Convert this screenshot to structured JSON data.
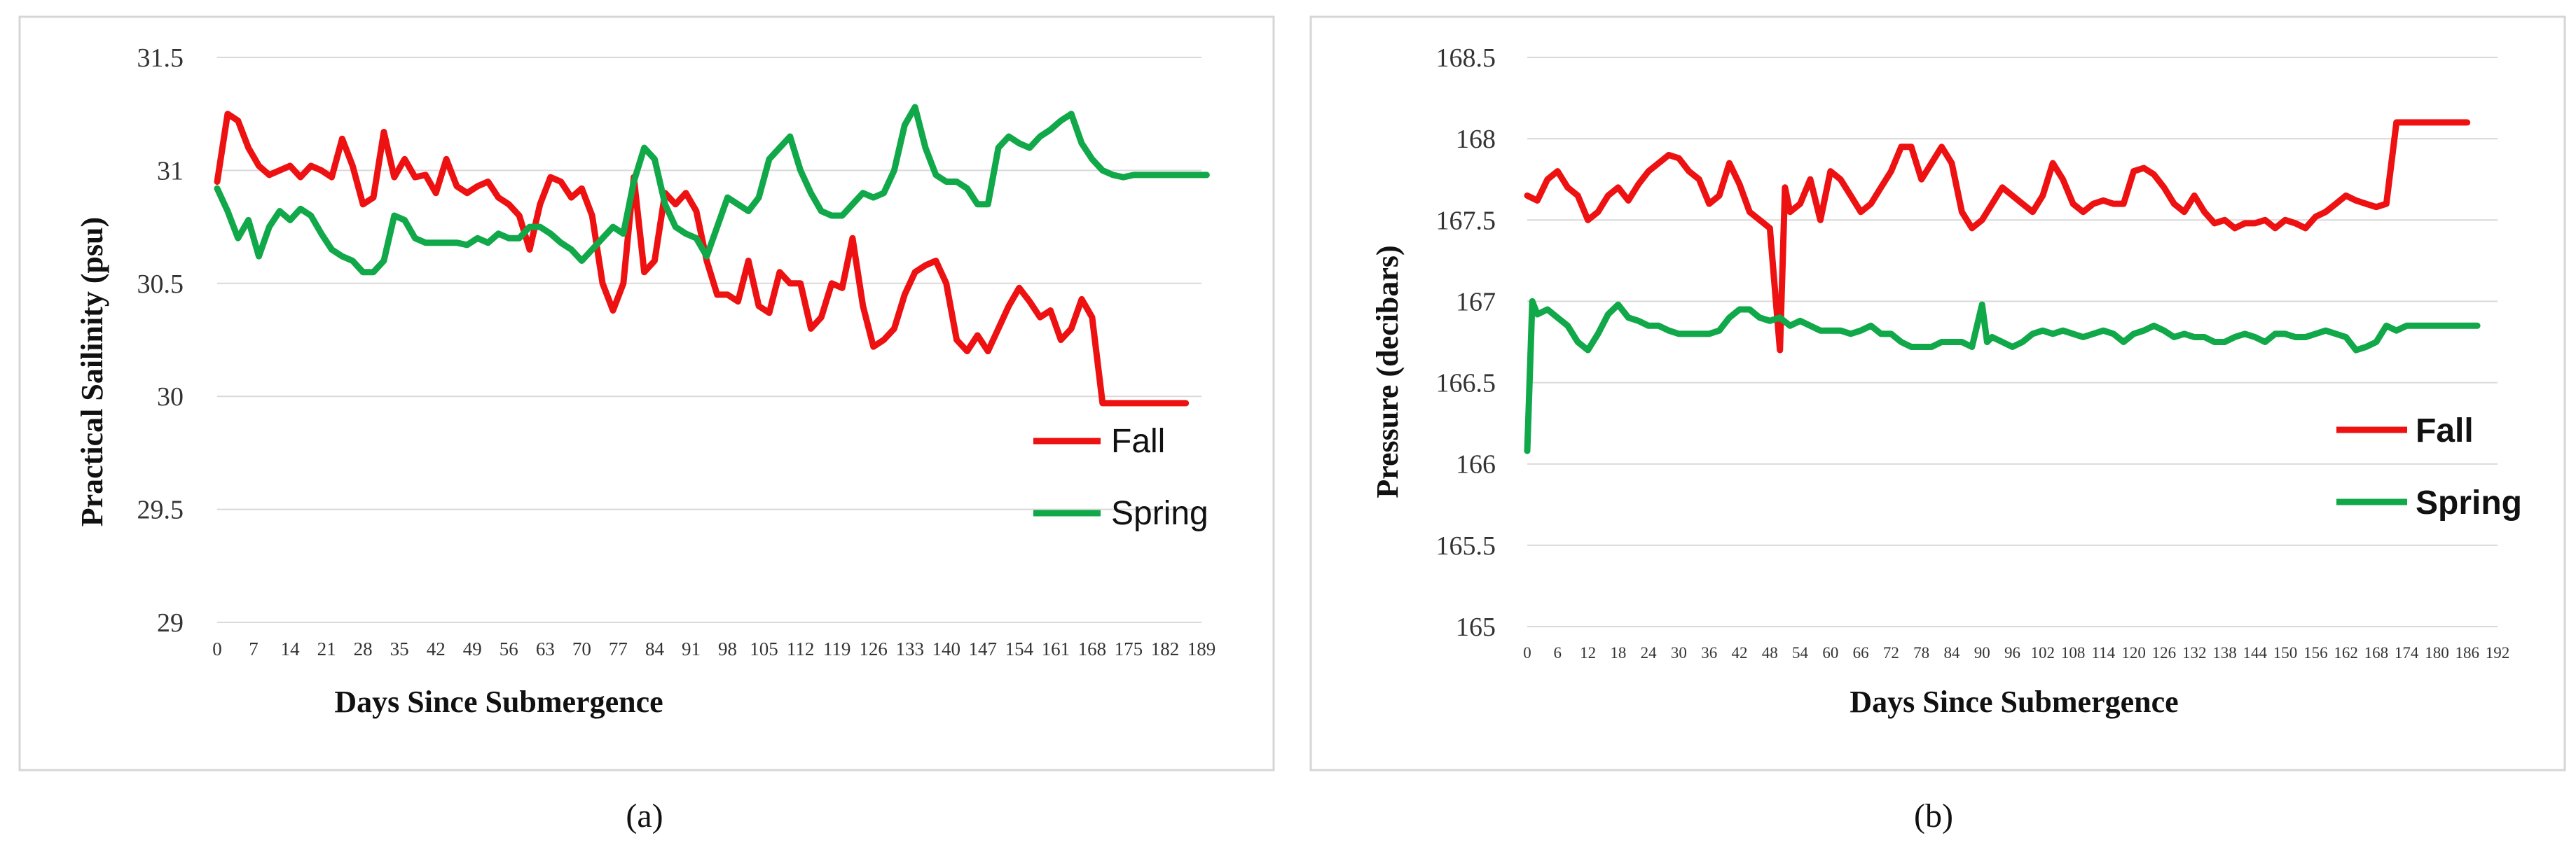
{
  "chart_data": [
    {
      "type": "line",
      "caption": "(a)",
      "xlabel": "Days Since Submergence",
      "ylabel": "Practical Sailinity (psu)",
      "ylim": [
        29,
        31.5
      ],
      "yticks": [
        "29",
        "29.5",
        "30",
        "30.5",
        "31",
        "31.5"
      ],
      "x_step": 7,
      "xticks": [
        "0",
        "7",
        "14",
        "21",
        "28",
        "35",
        "42",
        "49",
        "56",
        "63",
        "70",
        "77",
        "84",
        "91",
        "98",
        "105",
        "112",
        "119",
        "126",
        "133",
        "140",
        "147",
        "154",
        "161",
        "168",
        "175",
        "182",
        "189"
      ],
      "grid": "horizontal",
      "legend": "right",
      "series": [
        {
          "name": "Fall",
          "color": "#ee1111",
          "x": [
            0,
            2,
            4,
            6,
            8,
            10,
            12,
            14,
            16,
            18,
            20,
            22,
            24,
            26,
            28,
            30,
            32,
            34,
            36,
            38,
            40,
            42,
            44,
            46,
            48,
            50,
            52,
            54,
            56,
            58,
            60,
            62,
            64,
            66,
            68,
            70,
            72,
            74,
            76,
            78,
            80,
            82,
            84,
            86,
            88,
            90,
            92,
            94,
            96,
            98,
            100,
            102,
            104,
            106,
            108,
            110,
            112,
            114,
            116,
            118,
            120,
            122,
            124,
            126,
            128,
            130,
            132,
            134,
            136,
            138,
            140,
            142,
            144,
            146,
            148,
            150,
            152,
            154,
            156,
            158,
            160,
            162,
            164,
            166,
            168,
            170,
            172,
            174,
            176,
            178,
            180,
            182,
            184,
            186
          ],
          "values": [
            30.95,
            31.25,
            31.22,
            31.1,
            31.02,
            30.98,
            31.0,
            31.02,
            30.97,
            31.02,
            31.0,
            30.97,
            31.14,
            31.02,
            30.85,
            30.88,
            31.17,
            30.97,
            31.05,
            30.97,
            30.98,
            30.9,
            31.05,
            30.93,
            30.9,
            30.93,
            30.95,
            30.88,
            30.85,
            30.8,
            30.65,
            30.85,
            30.97,
            30.95,
            30.88,
            30.92,
            30.8,
            30.5,
            30.38,
            30.5,
            30.97,
            30.55,
            30.6,
            30.9,
            30.85,
            30.9,
            30.82,
            30.6,
            30.45,
            30.45,
            30.42,
            30.6,
            30.4,
            30.37,
            30.55,
            30.5,
            30.5,
            30.3,
            30.35,
            30.5,
            30.48,
            30.7,
            30.4,
            30.22,
            30.25,
            30.3,
            30.45,
            30.55,
            30.58,
            30.6,
            30.5,
            30.25,
            30.2,
            30.27,
            30.2,
            30.3,
            30.4,
            30.48,
            30.42,
            30.35,
            30.38,
            30.25,
            30.3,
            30.43,
            30.35,
            29.97,
            29.97,
            29.97,
            29.97,
            29.97,
            29.97,
            29.97,
            29.97,
            29.97
          ]
        },
        {
          "name": "Spring",
          "color": "#11a84a",
          "x": [
            0,
            2,
            4,
            6,
            8,
            10,
            12,
            14,
            16,
            18,
            20,
            22,
            24,
            26,
            28,
            30,
            32,
            34,
            36,
            38,
            40,
            42,
            44,
            46,
            48,
            50,
            52,
            54,
            56,
            58,
            60,
            62,
            64,
            66,
            68,
            70,
            72,
            74,
            76,
            78,
            80,
            82,
            84,
            86,
            88,
            90,
            92,
            94,
            96,
            98,
            100,
            102,
            104,
            106,
            108,
            110,
            112,
            114,
            116,
            118,
            120,
            122,
            124,
            126,
            128,
            130,
            132,
            134,
            136,
            138,
            140,
            142,
            144,
            146,
            148,
            150,
            152,
            154,
            156,
            158,
            160,
            162,
            164,
            166,
            168,
            170,
            172,
            174,
            176,
            178,
            180,
            182,
            184,
            186,
            188,
            190
          ],
          "values": [
            30.92,
            30.82,
            30.7,
            30.78,
            30.62,
            30.75,
            30.82,
            30.78,
            30.83,
            30.8,
            30.72,
            30.65,
            30.62,
            30.6,
            30.55,
            30.55,
            30.6,
            30.8,
            30.78,
            30.7,
            30.68,
            30.68,
            30.68,
            30.68,
            30.67,
            30.7,
            30.68,
            30.72,
            30.7,
            30.7,
            30.75,
            30.75,
            30.72,
            30.68,
            30.65,
            30.6,
            30.65,
            30.7,
            30.75,
            30.72,
            30.95,
            31.1,
            31.05,
            30.85,
            30.75,
            30.72,
            30.7,
            30.62,
            30.75,
            30.88,
            30.85,
            30.82,
            30.88,
            31.05,
            31.1,
            31.15,
            31.0,
            30.9,
            30.82,
            30.8,
            30.8,
            30.85,
            30.9,
            30.88,
            30.9,
            31.0,
            31.2,
            31.28,
            31.1,
            30.98,
            30.95,
            30.95,
            30.92,
            30.85,
            30.85,
            31.1,
            31.15,
            31.12,
            31.1,
            31.15,
            31.18,
            31.22,
            31.25,
            31.12,
            31.05,
            31.0,
            30.98,
            30.97,
            30.98,
            30.98,
            30.98,
            30.98,
            30.98,
            30.98,
            30.98,
            30.98
          ]
        }
      ]
    },
    {
      "type": "line",
      "caption": "(b)",
      "xlabel": "Days Since Submergence",
      "ylabel": "Pressure (decibars)",
      "ylim": [
        165,
        168.5
      ],
      "yticks": [
        "165",
        "165.5",
        "166",
        "166.5",
        "167",
        "167.5",
        "168",
        "168.5"
      ],
      "x_step": 6,
      "xticks": [
        "0",
        "6",
        "12",
        "18",
        "24",
        "30",
        "36",
        "42",
        "48",
        "54",
        "60",
        "66",
        "72",
        "78",
        "84",
        "90",
        "96",
        "102",
        "108",
        "114",
        "120",
        "126",
        "132",
        "138",
        "144",
        "150",
        "156",
        "162",
        "168",
        "174",
        "180",
        "186",
        "192"
      ],
      "grid": "horizontal",
      "legend": "right",
      "series": [
        {
          "name": "Fall",
          "color": "#ee1111",
          "x": [
            0,
            2,
            4,
            6,
            8,
            10,
            12,
            14,
            16,
            18,
            20,
            22,
            24,
            26,
            28,
            30,
            32,
            34,
            36,
            38,
            40,
            42,
            44,
            46,
            48,
            50,
            51,
            52,
            54,
            56,
            58,
            60,
            62,
            64,
            66,
            68,
            70,
            72,
            74,
            76,
            78,
            80,
            82,
            84,
            86,
            88,
            90,
            92,
            94,
            96,
            98,
            100,
            102,
            104,
            106,
            108,
            110,
            112,
            114,
            116,
            118,
            120,
            122,
            124,
            126,
            128,
            130,
            132,
            134,
            136,
            138,
            140,
            142,
            144,
            146,
            148,
            150,
            152,
            154,
            156,
            158,
            160,
            162,
            164,
            166,
            168,
            170,
            172,
            174,
            176,
            178,
            180,
            182,
            184,
            186
          ],
          "values": [
            167.65,
            167.62,
            167.75,
            167.8,
            167.7,
            167.65,
            167.5,
            167.55,
            167.65,
            167.7,
            167.62,
            167.72,
            167.8,
            167.85,
            167.9,
            167.88,
            167.8,
            167.75,
            167.6,
            167.65,
            167.85,
            167.72,
            167.55,
            167.5,
            167.45,
            166.7,
            167.7,
            167.55,
            167.6,
            167.75,
            167.5,
            167.8,
            167.75,
            167.65,
            167.55,
            167.6,
            167.7,
            167.8,
            167.95,
            167.95,
            167.75,
            167.85,
            167.95,
            167.85,
            167.55,
            167.45,
            167.5,
            167.6,
            167.7,
            167.65,
            167.6,
            167.55,
            167.65,
            167.85,
            167.75,
            167.6,
            167.55,
            167.6,
            167.62,
            167.6,
            167.6,
            167.8,
            167.82,
            167.78,
            167.7,
            167.6,
            167.55,
            167.65,
            167.55,
            167.48,
            167.5,
            167.45,
            167.48,
            167.48,
            167.5,
            167.45,
            167.5,
            167.48,
            167.45,
            167.52,
            167.55,
            167.6,
            167.65,
            167.62,
            167.6,
            167.58,
            167.6,
            168.1,
            168.1,
            168.1,
            168.1,
            168.1,
            168.1,
            168.1,
            168.1
          ]
        },
        {
          "name": "Spring",
          "color": "#11a84a",
          "x": [
            0,
            1,
            2,
            4,
            6,
            8,
            10,
            12,
            14,
            16,
            18,
            20,
            22,
            24,
            26,
            28,
            30,
            32,
            34,
            36,
            38,
            40,
            42,
            44,
            46,
            48,
            50,
            52,
            54,
            56,
            58,
            60,
            62,
            64,
            66,
            68,
            70,
            72,
            74,
            76,
            78,
            80,
            82,
            84,
            86,
            88,
            90,
            91,
            92,
            94,
            96,
            98,
            100,
            102,
            104,
            106,
            108,
            110,
            112,
            114,
            116,
            118,
            120,
            122,
            124,
            126,
            128,
            130,
            132,
            134,
            136,
            138,
            140,
            142,
            144,
            146,
            148,
            150,
            152,
            154,
            156,
            158,
            160,
            162,
            164,
            166,
            168,
            170,
            172,
            174,
            176,
            178,
            180,
            182,
            184,
            186,
            188
          ],
          "values": [
            166.08,
            167.0,
            166.92,
            166.95,
            166.9,
            166.85,
            166.75,
            166.7,
            166.8,
            166.92,
            166.98,
            166.9,
            166.88,
            166.85,
            166.85,
            166.82,
            166.8,
            166.8,
            166.8,
            166.8,
            166.82,
            166.9,
            166.95,
            166.95,
            166.9,
            166.88,
            166.9,
            166.85,
            166.88,
            166.85,
            166.82,
            166.82,
            166.82,
            166.8,
            166.82,
            166.85,
            166.8,
            166.8,
            166.75,
            166.72,
            166.72,
            166.72,
            166.75,
            166.75,
            166.75,
            166.72,
            166.98,
            166.75,
            166.78,
            166.75,
            166.72,
            166.75,
            166.8,
            166.82,
            166.8,
            166.82,
            166.8,
            166.78,
            166.8,
            166.82,
            166.8,
            166.75,
            166.8,
            166.82,
            166.85,
            166.82,
            166.78,
            166.8,
            166.78,
            166.78,
            166.75,
            166.75,
            166.78,
            166.8,
            166.78,
            166.75,
            166.8,
            166.8,
            166.78,
            166.78,
            166.8,
            166.82,
            166.8,
            166.78,
            166.7,
            166.72,
            166.75,
            166.85,
            166.82,
            166.85,
            166.85,
            166.85,
            166.85,
            166.85,
            166.85,
            166.85,
            166.85
          ]
        }
      ]
    }
  ]
}
